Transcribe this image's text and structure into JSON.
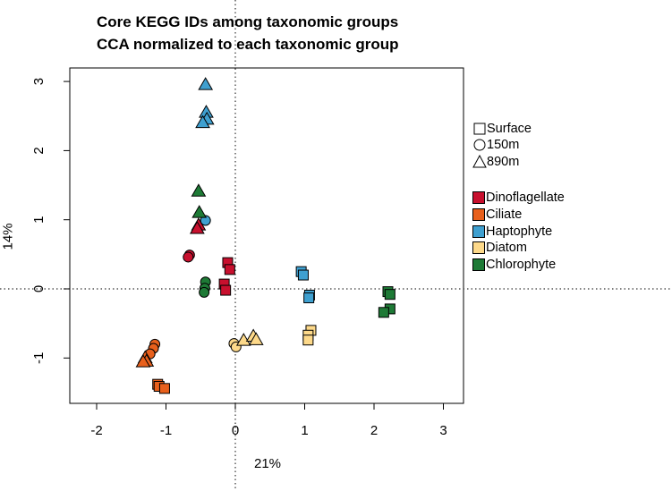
{
  "title": [
    "Core KEGG IDs among taxonomic groups",
    "CCA normalized to each taxonomic group"
  ],
  "xlabel": "21%",
  "ylabel": "14%",
  "legend_shapes": [
    {
      "label": "Surface",
      "shape": "square"
    },
    {
      "label": "150m",
      "shape": "circle"
    },
    {
      "label": "890m",
      "shape": "triangle"
    }
  ],
  "legend_groups": [
    {
      "label": "Dinoflagellate",
      "color": "#C8102E"
    },
    {
      "label": "Ciliate",
      "color": "#E8601C"
    },
    {
      "label": "Haptophyte",
      "color": "#3FA0D0"
    },
    {
      "label": "Diatom",
      "color": "#FDD98A"
    },
    {
      "label": "Chlorophyte",
      "color": "#1E7A36"
    }
  ],
  "chart_data": {
    "type": "scatter",
    "title": "Core KEGG IDs among taxonomic groups\nCCA normalized to each taxonomic group",
    "xlabel": "21%",
    "ylabel": "14%",
    "xlim": [
      -2.2,
      3.3
    ],
    "ylim": [
      -1.65,
      3.15
    ],
    "xticks": [
      -2,
      -1,
      0,
      1,
      2,
      3
    ],
    "yticks": [
      -1,
      0,
      1,
      2,
      3
    ],
    "grid": false,
    "reference_lines": {
      "x": 0,
      "y": 0,
      "style": "dotted"
    },
    "legend_position": "right",
    "series": [
      {
        "name": "Dinoflagellate",
        "color": "#C8102E",
        "points": [
          {
            "x": -0.11,
            "y": 0.38,
            "shape": "square"
          },
          {
            "x": -0.08,
            "y": 0.28,
            "shape": "square"
          },
          {
            "x": -0.16,
            "y": 0.07,
            "shape": "square"
          },
          {
            "x": -0.14,
            "y": -0.02,
            "shape": "square"
          },
          {
            "x": -0.66,
            "y": 0.49,
            "shape": "circle"
          },
          {
            "x": -0.68,
            "y": 0.46,
            "shape": "circle"
          },
          {
            "x": -0.53,
            "y": 0.92,
            "shape": "triangle"
          },
          {
            "x": -0.55,
            "y": 0.87,
            "shape": "triangle"
          }
        ]
      },
      {
        "name": "Ciliate",
        "color": "#E8601C",
        "points": [
          {
            "x": -1.12,
            "y": -1.38,
            "shape": "square"
          },
          {
            "x": -1.1,
            "y": -1.41,
            "shape": "square"
          },
          {
            "x": -1.02,
            "y": -1.44,
            "shape": "square"
          },
          {
            "x": -1.16,
            "y": -0.8,
            "shape": "circle"
          },
          {
            "x": -1.18,
            "y": -0.86,
            "shape": "circle"
          },
          {
            "x": -1.23,
            "y": -0.94,
            "shape": "circle"
          },
          {
            "x": -1.3,
            "y": -1.0,
            "shape": "triangle"
          },
          {
            "x": -1.28,
            "y": -1.05,
            "shape": "triangle"
          },
          {
            "x": -1.33,
            "y": -1.06,
            "shape": "triangle"
          }
        ]
      },
      {
        "name": "Haptophyte",
        "color": "#3FA0D0",
        "points": [
          {
            "x": 0.95,
            "y": 0.25,
            "shape": "square"
          },
          {
            "x": 0.98,
            "y": 0.2,
            "shape": "square"
          },
          {
            "x": 1.07,
            "y": -0.09,
            "shape": "square"
          },
          {
            "x": 1.06,
            "y": -0.13,
            "shape": "square"
          },
          {
            "x": -0.43,
            "y": 0.99,
            "shape": "circle"
          },
          {
            "x": -0.43,
            "y": 2.95,
            "shape": "triangle"
          },
          {
            "x": -0.42,
            "y": 2.55,
            "shape": "triangle"
          },
          {
            "x": -0.41,
            "y": 2.45,
            "shape": "triangle"
          },
          {
            "x": -0.47,
            "y": 2.4,
            "shape": "triangle"
          }
        ]
      },
      {
        "name": "Diatom",
        "color": "#FDD98A",
        "points": [
          {
            "x": 1.09,
            "y": -0.6,
            "shape": "square"
          },
          {
            "x": 1.05,
            "y": -0.67,
            "shape": "square"
          },
          {
            "x": 1.05,
            "y": -0.74,
            "shape": "square"
          },
          {
            "x": -0.02,
            "y": -0.79,
            "shape": "circle"
          },
          {
            "x": 0.01,
            "y": -0.84,
            "shape": "circle"
          },
          {
            "x": 0.12,
            "y": -0.75,
            "shape": "triangle"
          },
          {
            "x": 0.26,
            "y": -0.69,
            "shape": "triangle"
          },
          {
            "x": 0.3,
            "y": -0.74,
            "shape": "triangle"
          }
        ]
      },
      {
        "name": "Chlorophyte",
        "color": "#1E7A36",
        "points": [
          {
            "x": 2.2,
            "y": -0.04,
            "shape": "square"
          },
          {
            "x": 2.23,
            "y": -0.08,
            "shape": "square"
          },
          {
            "x": 2.23,
            "y": -0.29,
            "shape": "square"
          },
          {
            "x": 2.14,
            "y": -0.34,
            "shape": "square"
          },
          {
            "x": -0.43,
            "y": 0.1,
            "shape": "circle"
          },
          {
            "x": -0.44,
            "y": 0.01,
            "shape": "circle"
          },
          {
            "x": -0.45,
            "y": -0.05,
            "shape": "circle"
          },
          {
            "x": -0.53,
            "y": 1.41,
            "shape": "triangle"
          },
          {
            "x": -0.52,
            "y": 1.1,
            "shape": "triangle"
          }
        ]
      }
    ]
  }
}
